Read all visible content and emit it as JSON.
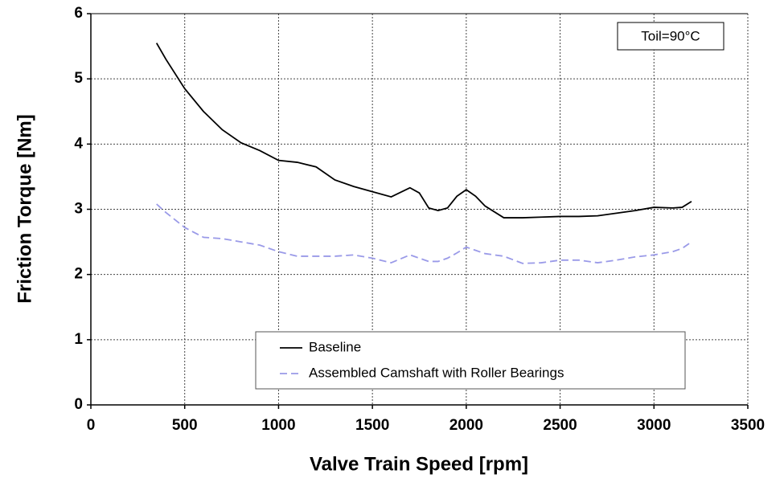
{
  "chart_data": {
    "type": "line",
    "xlabel": "Valve Train Speed [rpm]",
    "ylabel": "Friction Torque [Nm]",
    "annotation": "Toil=90°C",
    "x": [
      350,
      400,
      500,
      600,
      700,
      800,
      900,
      1000,
      1100,
      1200,
      1300,
      1400,
      1500,
      1600,
      1700,
      1750,
      1800,
      1850,
      1900,
      1950,
      2000,
      2050,
      2100,
      2200,
      2300,
      2400,
      2500,
      2600,
      2700,
      2800,
      2900,
      3000,
      3100,
      3150,
      3200
    ],
    "series": [
      {
        "name": "Baseline",
        "color": "#000000",
        "linestyle": "solid",
        "values": [
          5.55,
          5.3,
          4.85,
          4.5,
          4.22,
          4.02,
          3.9,
          3.75,
          3.72,
          3.65,
          3.45,
          3.35,
          3.27,
          3.19,
          3.33,
          3.25,
          3.02,
          2.98,
          3.02,
          3.2,
          3.3,
          3.2,
          3.05,
          2.87,
          2.87,
          2.88,
          2.89,
          2.89,
          2.9,
          2.94,
          2.98,
          3.03,
          3.02,
          3.03,
          3.12
        ]
      },
      {
        "name": "Assembled Camshaft with Roller Bearings",
        "color": "#9a9ae8",
        "linestyle": "dashed",
        "values": [
          3.08,
          2.95,
          2.72,
          2.57,
          2.55,
          2.5,
          2.45,
          2.35,
          2.28,
          2.28,
          2.28,
          2.3,
          2.25,
          2.18,
          2.3,
          2.25,
          2.2,
          2.2,
          2.25,
          2.33,
          2.42,
          2.37,
          2.32,
          2.28,
          2.17,
          2.18,
          2.22,
          2.22,
          2.18,
          2.22,
          2.27,
          2.3,
          2.35,
          2.4,
          2.5
        ]
      }
    ],
    "xlim": [
      0,
      3500
    ],
    "xticks": [
      0,
      500,
      1000,
      1500,
      2000,
      2500,
      3000,
      3500
    ],
    "ylim": [
      0,
      6
    ],
    "yticks": [
      0,
      1,
      2,
      3,
      4,
      5,
      6
    ],
    "grid": true,
    "legend": "lower right"
  }
}
